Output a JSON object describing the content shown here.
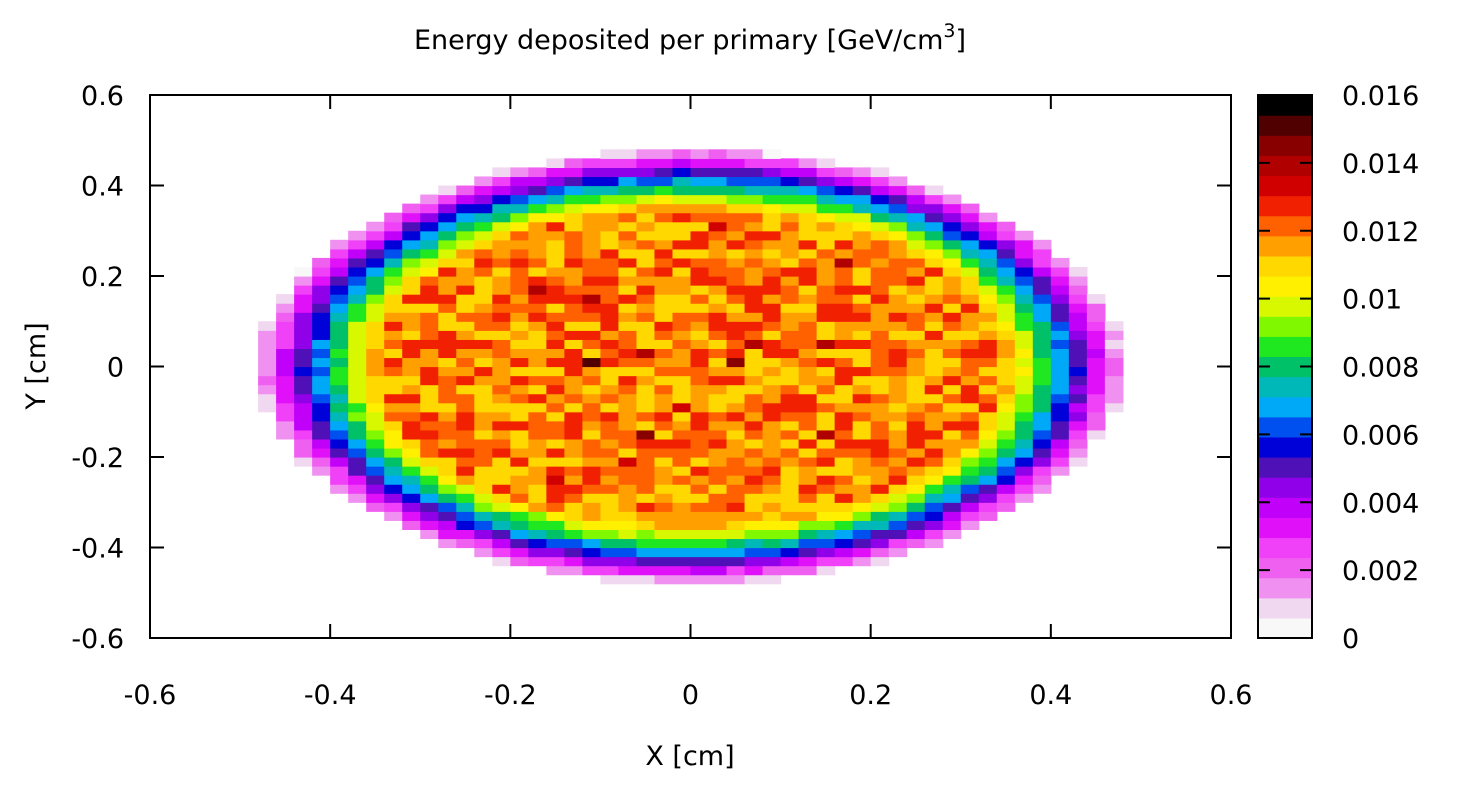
{
  "chart_data": {
    "type": "heatmap",
    "title": "Energy deposited per primary [GeV/cm",
    "title_superscript": "3",
    "title_suffix": "]",
    "xlabel": "X [cm]",
    "ylabel": "Y [cm]",
    "xlim": [
      -0.6,
      0.6
    ],
    "ylim": [
      -0.6,
      0.6
    ],
    "x_ticks": [
      "-0.6",
      "-0.4",
      "-0.2",
      "0",
      "0.2",
      "0.4",
      "0.6"
    ],
    "y_ticks": [
      "0.6",
      "0.4",
      "0.2",
      "0",
      "-0.2",
      "-0.4",
      "-0.6"
    ],
    "colorbar": {
      "range": [
        0,
        0.016
      ],
      "tick_labels": [
        "0.016",
        "0.014",
        "0.012",
        "0.01",
        "0.008",
        "0.006",
        "0.004",
        "0.002",
        "0"
      ],
      "colors": [
        "#f8f8f8",
        "#f0d8f0",
        "#f090f0",
        "#f060f0",
        "#f040f8",
        "#e010f8",
        "#c000f8",
        "#9000e8",
        "#5010b8",
        "#0000d8",
        "#0050f0",
        "#00a8f8",
        "#00b8b8",
        "#00c068",
        "#20e820",
        "#80f800",
        "#d8f800",
        "#fff000",
        "#ffd800",
        "#ffa000",
        "#ff6000",
        "#f02000",
        "#d00000",
        "#b00000",
        "#880000",
        "#500000",
        "#000000"
      ]
    },
    "grid": false,
    "distribution": {
      "shape": "elliptical",
      "center": [
        0,
        0
      ],
      "semi_axis_x": 0.48,
      "semi_axis_y": 0.48,
      "bin_size": 0.02,
      "plateau_value": 0.0118,
      "peak_value": 0.0152,
      "edge_value": 0.0005
    },
    "hotspots": [
      {
        "x": -0.11,
        "y": 0.01,
        "value": 0.0152
      },
      {
        "x": -0.05,
        "y": -0.15,
        "value": 0.0145
      },
      {
        "x": 0.05,
        "y": 0.01,
        "value": 0.0145
      },
      {
        "x": -0.11,
        "y": 0.15,
        "value": 0.0138
      },
      {
        "x": -0.17,
        "y": 0.17,
        "value": 0.0138
      },
      {
        "x": 0.17,
        "y": 0.23,
        "value": 0.0138
      },
      {
        "x": 0.15,
        "y": 0.05,
        "value": 0.014
      },
      {
        "x": 0.07,
        "y": 0.05,
        "value": 0.014
      },
      {
        "x": -0.05,
        "y": 0.03,
        "value": 0.0138
      },
      {
        "x": 0.15,
        "y": -0.15,
        "value": 0.0138
      },
      {
        "x": -0.15,
        "y": -0.25,
        "value": 0.0135
      },
      {
        "x": -0.07,
        "y": -0.21,
        "value": 0.0135
      },
      {
        "x": -0.01,
        "y": -0.09,
        "value": 0.0136
      },
      {
        "x": 0.03,
        "y": 0.31,
        "value": 0.0132
      }
    ]
  }
}
